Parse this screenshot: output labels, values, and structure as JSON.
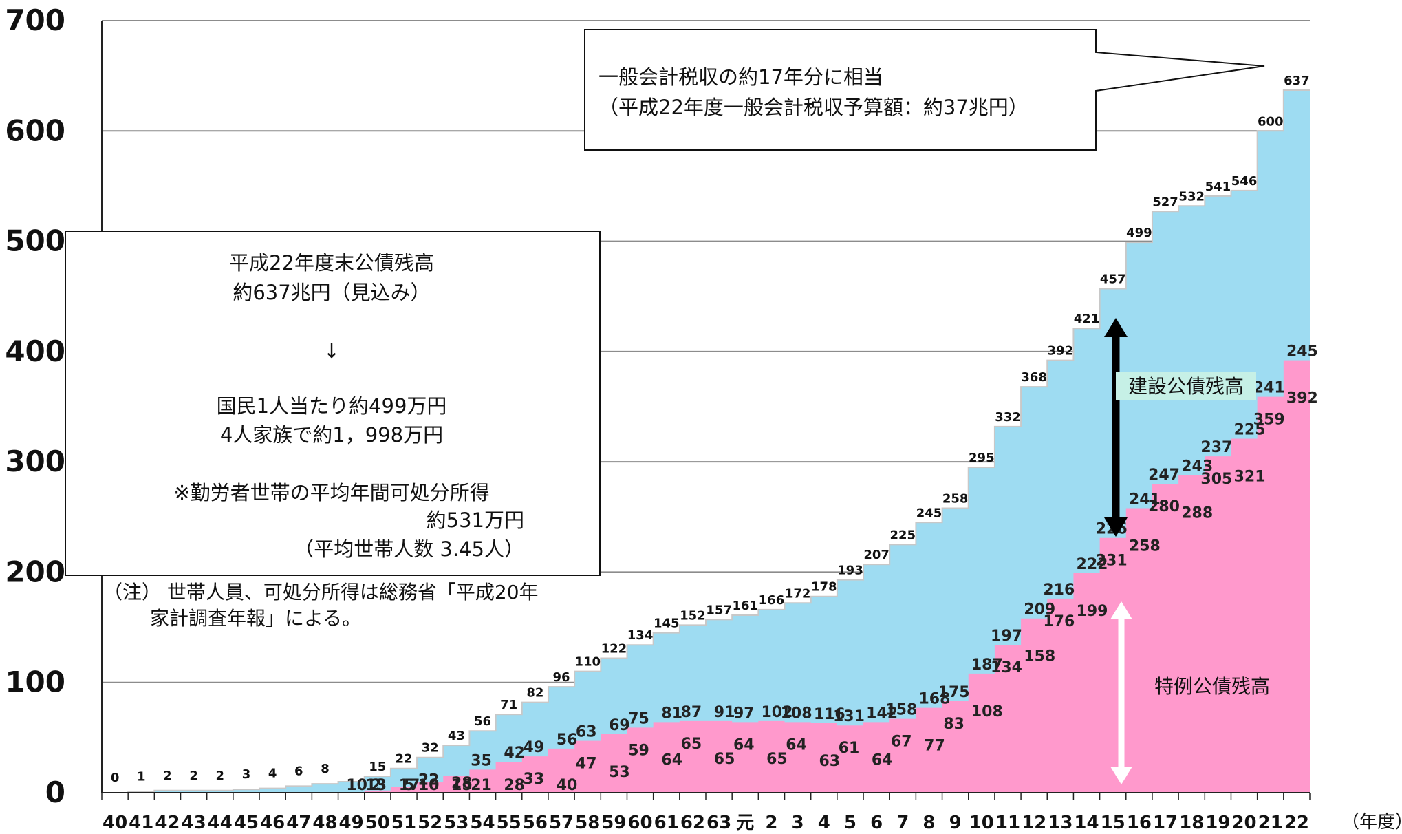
{
  "chart_data": {
    "type": "area",
    "unit_label": "（年度）",
    "ylim": [
      0,
      700
    ],
    "yticks": [
      "0",
      "100",
      "200",
      "300",
      "400",
      "500",
      "600",
      "700"
    ],
    "ytick_values": [
      0,
      100,
      200,
      300,
      400,
      500,
      600,
      700
    ],
    "categories": [
      "40",
      "41",
      "42",
      "43",
      "44",
      "45",
      "46",
      "47",
      "48",
      "49",
      "50",
      "51",
      "52",
      "53",
      "54",
      "55",
      "56",
      "57",
      "58",
      "59",
      "60",
      "61",
      "62",
      "63",
      "元",
      "2",
      "3",
      "4",
      "5",
      "6",
      "7",
      "8",
      "9",
      "10",
      "11",
      "12",
      "13",
      "14",
      "15",
      "16",
      "17",
      "18",
      "19",
      "20",
      "21",
      "22"
    ],
    "total": [
      0,
      1,
      2,
      2,
      2,
      3,
      4,
      6,
      8,
      10,
      15,
      22,
      32,
      43,
      56,
      71,
      82,
      96,
      110,
      122,
      134,
      145,
      152,
      157,
      161,
      166,
      172,
      178,
      193,
      207,
      225,
      245,
      258,
      295,
      332,
      368,
      392,
      421,
      457,
      499,
      527,
      532,
      541,
      546,
      600,
      637
    ],
    "series": [
      {
        "name": "建設公債残高",
        "color": "#9edcf2",
        "values": [
          0,
          1,
          2,
          2,
          2,
          3,
          4,
          6,
          8,
          10,
          13,
          17,
          22,
          28,
          35,
          42,
          49,
          56,
          63,
          69,
          75,
          81,
          87,
          91,
          97,
          102,
          108,
          116,
          131,
          142,
          158,
          168,
          175,
          187,
          197,
          209,
          216,
          222,
          226,
          241,
          247,
          243,
          237,
          225,
          241,
          245
        ]
      },
      {
        "name": "特例公債残高",
        "color": "#ff99cc",
        "values": [
          0,
          0,
          0,
          0,
          0,
          0,
          0,
          0,
          0,
          0,
          2,
          5,
          10,
          15,
          21,
          28,
          33,
          40,
          47,
          53,
          59,
          64,
          65,
          65,
          64,
          65,
          64,
          63,
          61,
          64,
          67,
          77,
          83,
          108,
          134,
          158,
          176,
          199,
          231,
          258,
          280,
          288,
          305,
          321,
          359,
          392
        ]
      }
    ],
    "total_labels": [
      "0",
      "1",
      "2",
      "2",
      "2",
      "3",
      "4",
      "6",
      "8",
      "",
      "15",
      "22",
      "32",
      "43",
      "56",
      "71",
      "82",
      "96",
      "110",
      "122",
      "134",
      "145",
      "152",
      "157",
      "161",
      "166",
      "172",
      "178",
      "193",
      "207",
      "225",
      "245",
      "258",
      "295",
      "332",
      "368",
      "392",
      "421",
      "457",
      "499",
      "527",
      "532",
      "541",
      "546",
      "600",
      "637"
    ],
    "construction_labels": [
      "",
      "",
      "",
      "",
      "",
      "",
      "",
      "",
      "",
      "10",
      "13",
      "17",
      "22",
      "28",
      "35",
      "42",
      "49",
      "56",
      "63",
      "69",
      "75",
      "81",
      "87",
      "91",
      "97",
      "102",
      "108",
      "116",
      "131",
      "142",
      "158",
      "168",
      "175",
      "187",
      "197",
      "209",
      "216",
      "222",
      "226",
      "241",
      "247",
      "243",
      "237",
      "225",
      "241",
      "245"
    ],
    "special_labels": [
      "",
      "",
      "",
      "",
      "",
      "",
      "",
      "",
      "",
      "",
      "2",
      "5",
      "10",
      "15",
      "21",
      "28",
      "33",
      "40",
      "47",
      "53",
      "59",
      "64",
      "65",
      "65",
      "64",
      "65",
      "64",
      "63",
      "61",
      "64",
      "67",
      "77",
      "83",
      "108",
      "134",
      "158",
      "176",
      "199",
      "231",
      "258",
      "280",
      "288",
      "305",
      "321",
      "359",
      "392"
    ]
  },
  "annotations": {
    "callout_line1": "一般会計税収の約17年分に相当",
    "callout_line2": "（平成22年度一般会計税収予算額：約37兆円）",
    "box_line1": "平成22年度末公債残高",
    "box_line2": "約637兆円（見込み）",
    "box_arrow": "↓",
    "box_line3": "国民1人当たり約499万円",
    "box_line4": "4人家族で約1，998万円",
    "box_line5": "※勤労者世帯の平均年間可処分所得",
    "box_line6": "約531万円",
    "box_line7": "（平均世帯人数  3.45人）",
    "note_line1": "（注） 世帯人員、可処分所得は総務省「平成20年",
    "note_line2": "家計調査年報」による。",
    "construction_label": "建設公債残高",
    "special_label": "特例公債残高"
  }
}
